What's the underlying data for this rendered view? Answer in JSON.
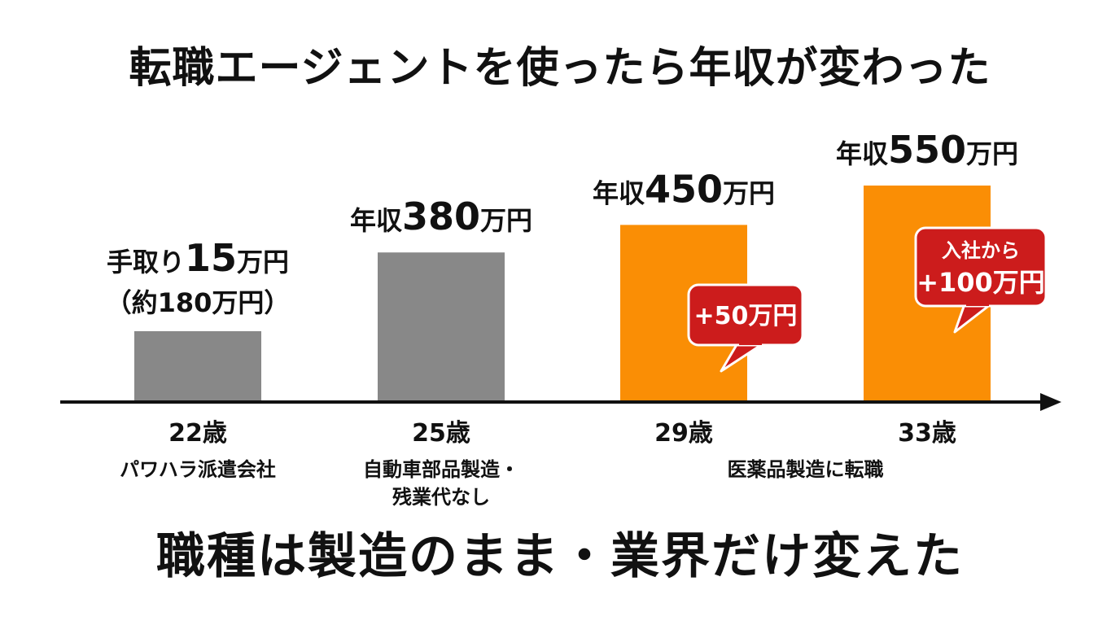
{
  "title": "転職エージェントを使ったら年収が変わった",
  "footer": "職種は製造のまま・業界だけ変えた",
  "colors": {
    "gray_bar": "#888888",
    "orange_bar": "#FA8E05",
    "bubble": "#CC1C1C",
    "axis": "#111111"
  },
  "chart_data": {
    "type": "bar",
    "unit": "万円",
    "categories": [
      "22歳",
      "25歳",
      "29歳",
      "33歳"
    ],
    "values": [
      180,
      380,
      450,
      550
    ],
    "ylim": [
      0,
      650
    ],
    "bars": [
      {
        "age": "22歳",
        "value": 180,
        "highlight": false,
        "label_lines": [
          "手取り15万円",
          "（約180万円）"
        ],
        "sub_lines": [
          "パワハラ派遣会社"
        ]
      },
      {
        "age": "25歳",
        "value": 380,
        "highlight": false,
        "label_lines": [
          "年収380万円"
        ],
        "sub_lines": [
          "自動車部品製造・",
          "残業代なし"
        ]
      },
      {
        "age": "29歳",
        "value": 450,
        "highlight": true,
        "label_lines": [
          "年収450万円"
        ],
        "sub_lines": [],
        "bubble_lines": [
          "+50万円"
        ]
      },
      {
        "age": "33歳",
        "value": 550,
        "highlight": true,
        "label_lines": [
          "年収550万円"
        ],
        "sub_lines": [],
        "bubble_lines": [
          "入社から",
          "+100万円"
        ]
      }
    ],
    "group_note": "医薬品製造に転職"
  }
}
